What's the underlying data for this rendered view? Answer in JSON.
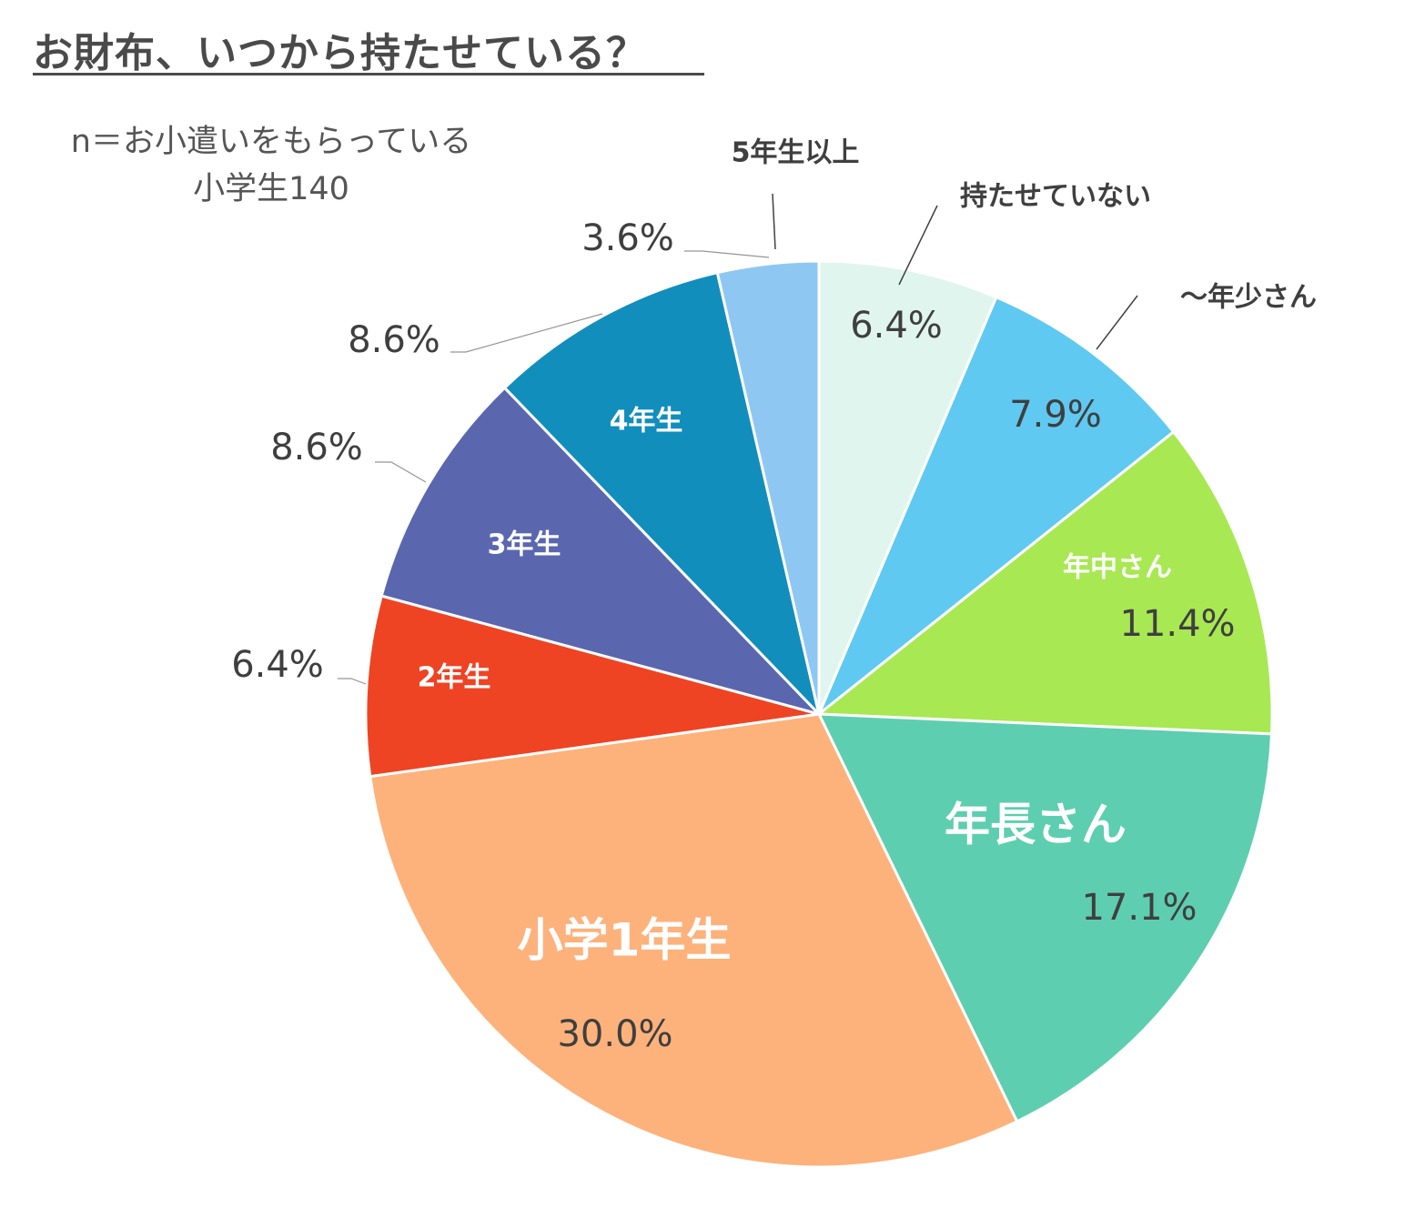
{
  "title": "お財布、いつから持たせている？",
  "sample_note": {
    "line1": "n＝お小遣いをもらっている",
    "line2": "小学生140"
  },
  "chart_data": {
    "type": "pie",
    "title": "お財布、いつから持たせている？",
    "start_angle_deg": 0,
    "direction": "clockwise",
    "slices": [
      {
        "label": "持たせていない",
        "value": 6.4,
        "pct_label": "6.4%",
        "color": "#E0F5EE",
        "label_color": "#3f3f3f"
      },
      {
        "label": "～年少さん",
        "value": 7.9,
        "pct_label": "7.9%",
        "color": "#5FC9F1",
        "label_color": "#3f3f3f"
      },
      {
        "label": "年中さん",
        "value": 11.4,
        "pct_label": "11.4%",
        "color": "#A8E853",
        "label_color": "#ffffff"
      },
      {
        "label": "年長さん",
        "value": 17.1,
        "pct_label": "17.1%",
        "color": "#5ECEB0",
        "label_color": "#ffffff"
      },
      {
        "label": "小学1年生",
        "value": 30.0,
        "pct_label": "30.0%",
        "color": "#FDB27C",
        "label_color": "#ffffff"
      },
      {
        "label": "2年生",
        "value": 6.4,
        "pct_label": "6.4%",
        "color": "#EE4424",
        "label_color": "#ffffff"
      },
      {
        "label": "3年生",
        "value": 8.6,
        "pct_label": "8.6%",
        "color": "#5A67AF",
        "label_color": "#ffffff"
      },
      {
        "label": "4年生",
        "value": 8.6,
        "pct_label": "8.6%",
        "color": "#128EBC",
        "label_color": "#ffffff"
      },
      {
        "label": "5年生以上",
        "value": 3.6,
        "pct_label": "3.6%",
        "color": "#8FC7F3",
        "label_color": "#3f3f3f"
      }
    ]
  }
}
